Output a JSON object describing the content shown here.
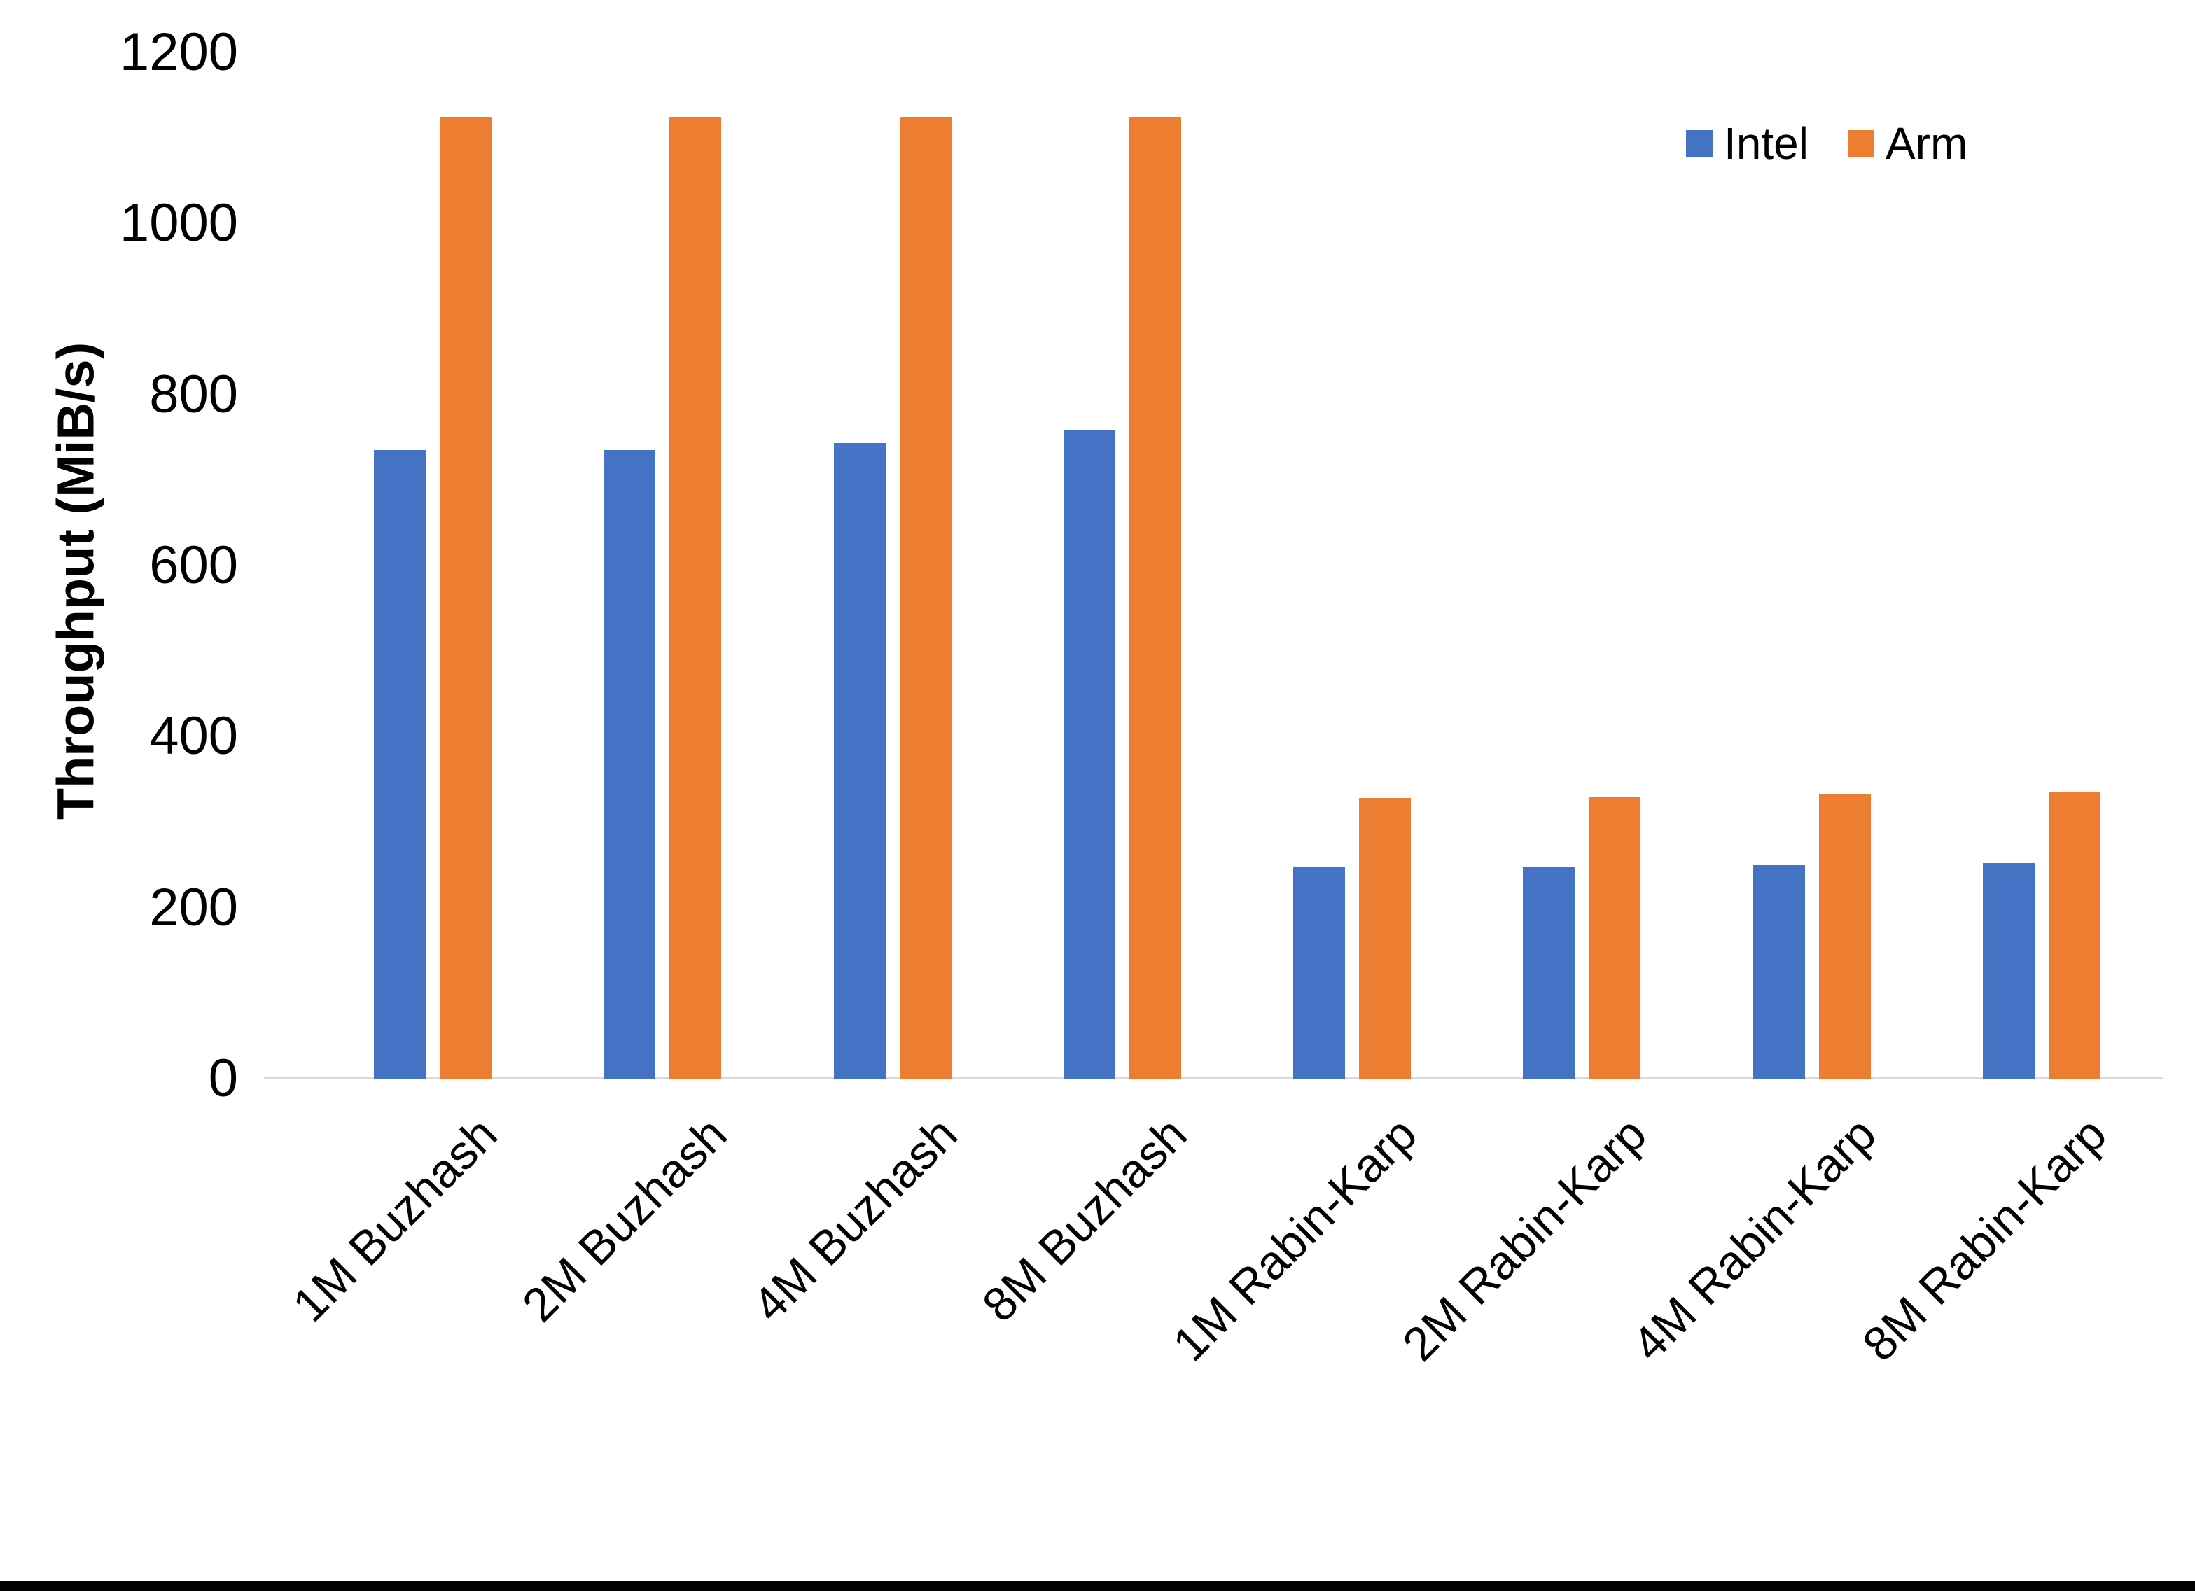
{
  "chart_data": {
    "type": "bar",
    "title": "",
    "xlabel": "",
    "ylabel": "Throughput (MiB/s)",
    "ylim": [
      0,
      1200
    ],
    "yticks": [
      0,
      200,
      400,
      600,
      800,
      1000,
      1200
    ],
    "ytick_labels": [
      "0",
      "200",
      "400",
      "600",
      "800",
      "1000",
      "1200"
    ],
    "grid": false,
    "legend_position": "top-right",
    "categories": [
      "1M Buzhash",
      "2M Buzhash",
      "4M Buzhash",
      "8M Buzhash",
      "1M Rabin-Karp",
      "2M Rabin-Karp",
      "4M Rabin-Karp",
      "8M Rabin-Karp"
    ],
    "series": [
      {
        "name": "Intel",
        "color": "#4472C4",
        "values": [
          735,
          735,
          743,
          759,
          247,
          248,
          250,
          252
        ]
      },
      {
        "name": "Arm",
        "color": "#ED7D31",
        "values": [
          1125,
          1125,
          1125,
          1125,
          328,
          330,
          333,
          336
        ]
      }
    ]
  },
  "colors": {
    "background": "#FFFFFF",
    "axis_line": "#D9D9D9",
    "text": "#000000",
    "bottom_border": "#000000"
  }
}
